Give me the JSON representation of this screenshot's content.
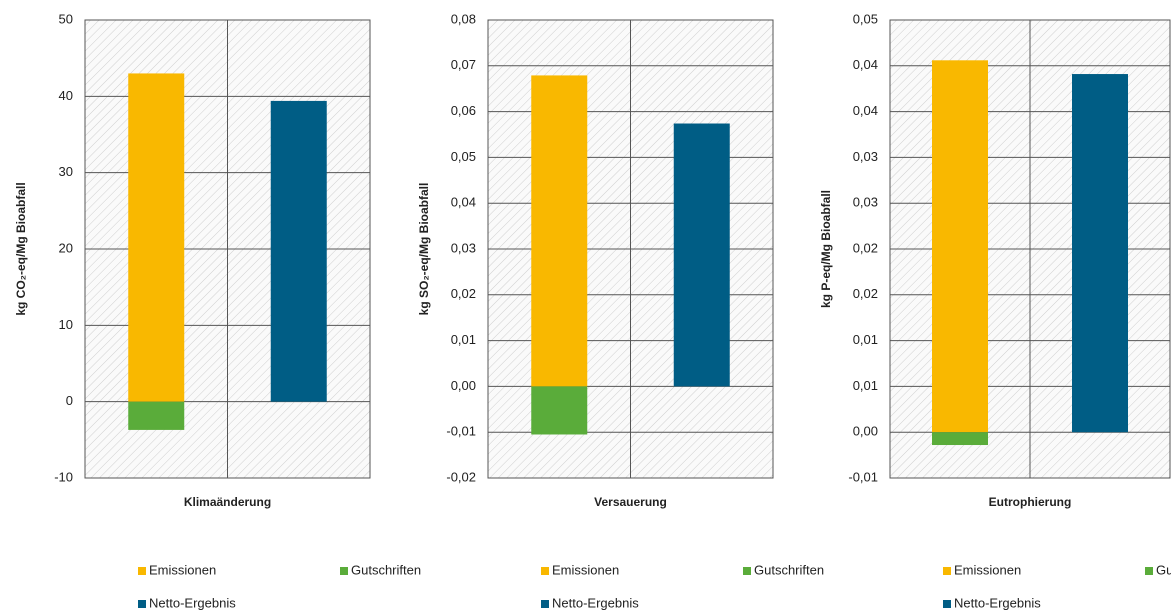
{
  "chart_data": [
    {
      "type": "bar",
      "stacked": true,
      "y_label": "kg CO₂-eq/Mg Bioabfall",
      "x_label": "Klimaänderung",
      "categories": [
        null,
        null
      ],
      "series": [
        {
          "name": "Emissionen",
          "color": "#f9b800",
          "values": [
            43.0,
            null
          ]
        },
        {
          "name": "Gutschriften",
          "color": "#5aac3a",
          "values": [
            -3.7,
            null
          ]
        },
        {
          "name": "Netto-Ergebnis",
          "color": "#005d85",
          "values": [
            null,
            39.4
          ]
        }
      ],
      "ylim": [
        -10,
        50
      ],
      "yticks": [
        -10,
        0,
        10,
        20,
        30,
        40,
        50
      ],
      "grid": true
    },
    {
      "type": "bar",
      "stacked": true,
      "y_label": "kg SO₂-eq/Mg Bioabfall",
      "x_label": "Versauerung",
      "categories": [
        null,
        null
      ],
      "series": [
        {
          "name": "Emissionen",
          "color": "#f9b800",
          "values": [
            0.0679,
            null
          ]
        },
        {
          "name": "Gutschriften",
          "color": "#5aac3a",
          "values": [
            -0.0105,
            null
          ]
        },
        {
          "name": "Netto-Ergebnis",
          "color": "#005d85",
          "values": [
            null,
            0.0574
          ]
        }
      ],
      "ylim": [
        -0.02,
        0.08
      ],
      "yticks": [
        {
          "value": -0.02,
          "label": "-0,02"
        },
        {
          "value": -0.01,
          "label": "-0,01"
        },
        {
          "value": 0,
          "label": "0,00"
        },
        {
          "value": 0.01,
          "label": "0,01"
        },
        {
          "value": 0.02,
          "label": "0,02"
        },
        {
          "value": 0.03,
          "label": "0,03"
        },
        {
          "value": 0.04,
          "label": "0,04"
        },
        {
          "value": 0.05,
          "label": "0,05"
        },
        {
          "value": 0.06,
          "label": "0,06"
        },
        {
          "value": 0.07,
          "label": "0,07"
        },
        {
          "value": 0.08,
          "label": "0,08"
        }
      ],
      "grid": true
    },
    {
      "type": "bar",
      "stacked": true,
      "y_label": "kg P-eq/Mg Bioabfall",
      "x_label": "Eutrophierung",
      "categories": [
        null,
        null
      ],
      "series": [
        {
          "name": "Emissionen",
          "color": "#f9b800",
          "values": [
            0.0406,
            null
          ]
        },
        {
          "name": "Gutschriften",
          "color": "#5aac3a",
          "values": [
            -0.0014,
            null
          ]
        },
        {
          "name": "Netto-Ergebnis",
          "color": "#005d85",
          "values": [
            null,
            0.0391
          ]
        }
      ],
      "ylim": [
        -0.005,
        0.045
      ],
      "yticks": [
        {
          "value": -0.005,
          "label": "-0,01"
        },
        {
          "value": 0,
          "label": "0,00"
        },
        {
          "value": 0.005,
          "label": "0,01"
        },
        {
          "value": 0.01,
          "label": "0,01"
        },
        {
          "value": 0.015,
          "label": "0,02"
        },
        {
          "value": 0.02,
          "label": "0,02"
        },
        {
          "value": 0.025,
          "label": "0,03"
        },
        {
          "value": 0.03,
          "label": "0,03"
        },
        {
          "value": 0.035,
          "label": "0,04"
        },
        {
          "value": 0.04,
          "label": "0,04"
        },
        {
          "value": 0.045,
          "label": "0,05"
        }
      ],
      "grid": true
    }
  ]
}
